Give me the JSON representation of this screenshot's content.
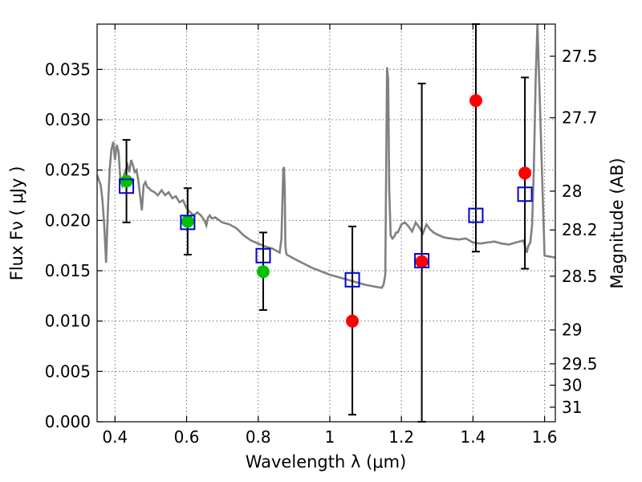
{
  "chart_data": {
    "type": "scatter",
    "title": "",
    "xlabel": "Wavelength  λ (μm)",
    "ylabel": "Flux  Fν  ( μJy )",
    "y2label": "Magnitude (AB)",
    "xlim": [
      0.35,
      1.63
    ],
    "ylim": [
      0.0,
      0.0395
    ],
    "grid": true,
    "x_ticks": [
      0.4,
      0.6,
      0.8,
      1.0,
      1.2,
      1.4,
      1.6
    ],
    "x_tick_labels": [
      "0.4",
      "0.6",
      "0.8",
      "1",
      "1.2",
      "1.4",
      "1.6"
    ],
    "y_ticks": [
      0.0,
      0.005,
      0.01,
      0.015,
      0.02,
      0.025,
      0.03,
      0.035
    ],
    "y_tick_labels": [
      "0.000",
      "0.005",
      "0.010",
      "0.015",
      "0.020",
      "0.025",
      "0.030",
      "0.035"
    ],
    "y2_ticks": [
      {
        "mag": 27.5,
        "label": "27.5"
      },
      {
        "mag": 27.7,
        "label": "27.7"
      },
      {
        "mag": 28.0,
        "label": "28"
      },
      {
        "mag": 28.2,
        "label": "28.2"
      },
      {
        "mag": 28.5,
        "label": "28.5"
      },
      {
        "mag": 29.0,
        "label": "29"
      },
      {
        "mag": 29.5,
        "label": "29.5"
      },
      {
        "mag": 30.0,
        "label": "30"
      },
      {
        "mag": 31.0,
        "label": "31"
      }
    ],
    "model_spectrum": {
      "color": "#808080",
      "x": [
        0.35,
        0.36,
        0.365,
        0.37,
        0.375,
        0.38,
        0.385,
        0.39,
        0.395,
        0.4,
        0.405,
        0.41,
        0.415,
        0.42,
        0.425,
        0.43,
        0.435,
        0.44,
        0.445,
        0.45,
        0.455,
        0.46,
        0.465,
        0.47,
        0.475,
        0.48,
        0.485,
        0.49,
        0.495,
        0.5,
        0.51,
        0.52,
        0.53,
        0.54,
        0.55,
        0.56,
        0.57,
        0.58,
        0.59,
        0.6,
        0.61,
        0.62,
        0.63,
        0.64,
        0.65,
        0.655,
        0.66,
        0.665,
        0.67,
        0.68,
        0.7,
        0.72,
        0.74,
        0.76,
        0.78,
        0.8,
        0.82,
        0.84,
        0.86,
        0.865,
        0.87,
        0.872,
        0.874,
        0.876,
        0.878,
        0.88,
        0.9,
        0.95,
        1.0,
        1.05,
        1.1,
        1.13,
        1.145,
        1.15,
        1.155,
        1.16,
        1.163,
        1.166,
        1.17,
        1.175,
        1.18,
        1.185,
        1.19,
        1.2,
        1.21,
        1.22,
        1.23,
        1.24,
        1.25,
        1.26,
        1.27,
        1.28,
        1.29,
        1.3,
        1.32,
        1.34,
        1.36,
        1.38,
        1.4,
        1.42,
        1.44,
        1.46,
        1.48,
        1.5,
        1.52,
        1.54,
        1.545,
        1.55,
        1.555,
        1.56,
        1.565,
        1.57,
        1.575,
        1.58,
        1.6,
        1.63
      ],
      "y": [
        0.0245,
        0.0235,
        0.022,
        0.0195,
        0.0158,
        0.021,
        0.025,
        0.027,
        0.0278,
        0.026,
        0.0275,
        0.0268,
        0.024,
        0.0235,
        0.0245,
        0.025,
        0.0255,
        0.0248,
        0.026,
        0.0255,
        0.0248,
        0.025,
        0.024,
        0.0225,
        0.021,
        0.0235,
        0.0238,
        0.0233,
        0.0232,
        0.023,
        0.0228,
        0.0225,
        0.023,
        0.0225,
        0.0228,
        0.0222,
        0.0224,
        0.0218,
        0.022,
        0.0212,
        0.0208,
        0.0205,
        0.0208,
        0.0205,
        0.02,
        0.0195,
        0.0203,
        0.0205,
        0.0202,
        0.0203,
        0.0198,
        0.0196,
        0.0192,
        0.0185,
        0.018,
        0.0177,
        0.0174,
        0.0172,
        0.0168,
        0.0182,
        0.0251,
        0.0253,
        0.0232,
        0.0175,
        0.0168,
        0.0166,
        0.0162,
        0.0153,
        0.0146,
        0.0141,
        0.0136,
        0.0134,
        0.0133,
        0.0136,
        0.0146,
        0.0352,
        0.034,
        0.0231,
        0.0185,
        0.0182,
        0.0184,
        0.0188,
        0.0188,
        0.0196,
        0.0198,
        0.0194,
        0.0189,
        0.0198,
        0.0193,
        0.0187,
        0.0196,
        0.0191,
        0.0188,
        0.0186,
        0.0183,
        0.0182,
        0.0181,
        0.0182,
        0.0178,
        0.0177,
        0.0178,
        0.0179,
        0.0177,
        0.0176,
        0.0178,
        0.018,
        0.0175,
        0.0168,
        0.0175,
        0.0178,
        0.0195,
        0.025,
        0.034,
        0.0395,
        0.0165,
        0.0163
      ]
    },
    "series": [
      {
        "marker": "circle",
        "color": "#00c000",
        "x": [
          0.432,
          0.603,
          0.814
        ],
        "y": [
          0.0239,
          0.0199,
          0.0149
        ]
      },
      {
        "marker": "circle",
        "color": "#ff0000",
        "x": [
          1.063,
          1.257,
          1.408,
          1.545
        ],
        "y": [
          0.01,
          0.0159,
          0.0319,
          0.0247
        ]
      },
      {
        "marker": "open-square",
        "color": "#0000cc",
        "x": [
          0.432,
          0.603,
          0.814,
          1.063,
          1.257,
          1.408,
          1.545
        ],
        "y": [
          0.0234,
          0.0198,
          0.0165,
          0.0141,
          0.016,
          0.0205,
          0.0226
        ]
      }
    ],
    "error_bars": [
      {
        "x": 0.432,
        "low": 0.0198,
        "high": 0.028
      },
      {
        "x": 0.603,
        "low": 0.0166,
        "high": 0.0232
      },
      {
        "x": 0.814,
        "low": 0.0111,
        "high": 0.0188
      },
      {
        "x": 1.063,
        "low": 0.0007,
        "high": 0.0194
      },
      {
        "x": 1.257,
        "low": 0.0,
        "high": 0.0336
      },
      {
        "x": 1.408,
        "low": 0.0169,
        "high": 0.0395
      },
      {
        "x": 1.545,
        "low": 0.0152,
        "high": 0.0342
      }
    ]
  }
}
